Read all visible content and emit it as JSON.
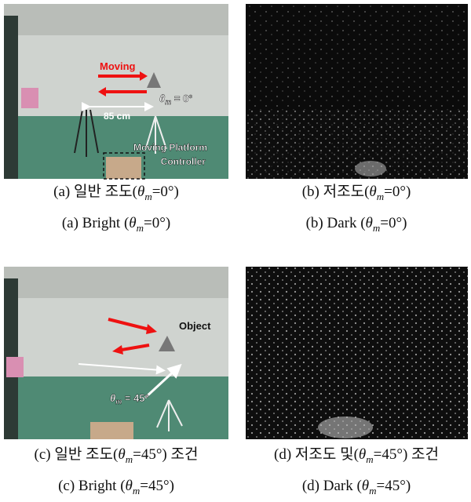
{
  "panels": [
    {
      "overlay": {
        "moving": "Moving",
        "angle": {
          "theta": "θ",
          "sub": "m",
          "rest": " = 0°"
        },
        "distance": "85 cm",
        "controller": [
          "Moving Platform",
          "Controller"
        ]
      },
      "caption_ko": {
        "before": "(a) 일반 조도(",
        "theta": "θ",
        "sub": "m",
        "after": "=0°)"
      },
      "caption_en": {
        "before": "(a) Bright (",
        "theta": "θ",
        "sub": "m",
        "after": "=0°)"
      }
    },
    {
      "caption_ko": {
        "before": "(b) 저조도(",
        "theta": "θ",
        "sub": "m",
        "after": "=0°)"
      },
      "caption_en": {
        "before": "(b) Dark (",
        "theta": "θ",
        "sub": "m",
        "after": "=0°)"
      }
    },
    {
      "overlay": {
        "object": "Object",
        "angle": {
          "theta": "θ",
          "sub": "m",
          "rest": " = 45°"
        }
      },
      "caption_ko": {
        "before": "(c) 일반 조도(",
        "theta": "θ",
        "sub": "m",
        "after": "=45°) 조건"
      },
      "caption_en": {
        "before": "(c) Bright (",
        "theta": "θ",
        "sub": "m",
        "after": "=45°)"
      }
    },
    {
      "caption_ko": {
        "before": "(d) 저조도 및(",
        "theta": "θ",
        "sub": "m",
        "after": "=45°) 조건"
      },
      "caption_en": {
        "before": "(d) Dark (",
        "theta": "θ",
        "sub": "m",
        "after": "=45°)"
      }
    }
  ]
}
